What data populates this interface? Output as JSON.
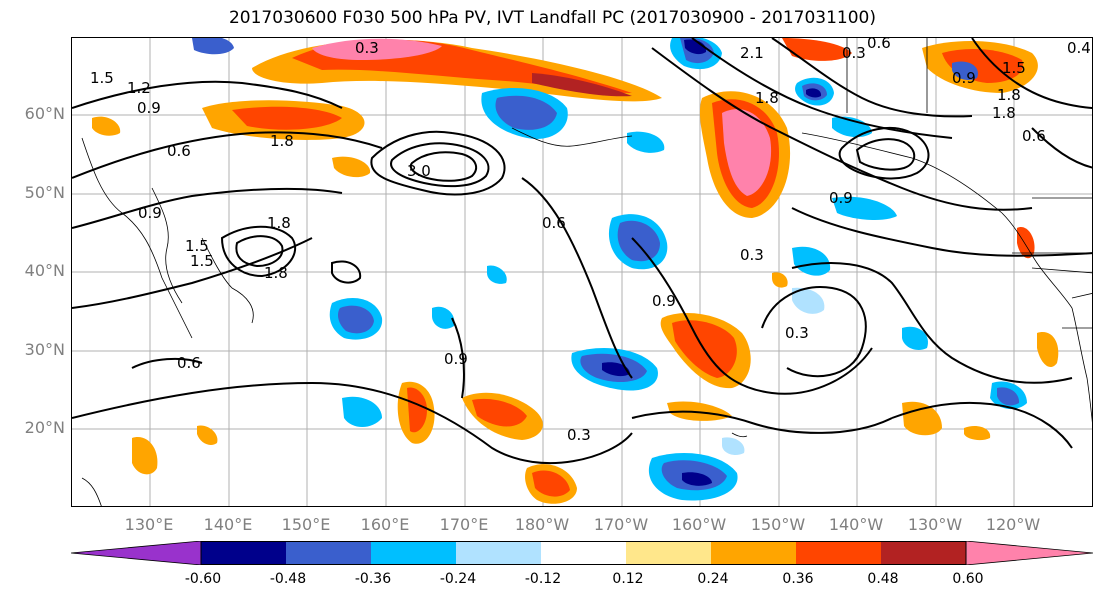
{
  "title": "2017030600 F030 500 hPa PV, IVT Landfall PC (2017030900 - 2017031100)",
  "lat_labels": [
    "60°N",
    "50°N",
    "40°N",
    "30°N",
    "20°N"
  ],
  "lon_labels": [
    "130°E",
    "140°E",
    "150°E",
    "160°E",
    "170°E",
    "180°W",
    "170°W",
    "160°W",
    "150°W",
    "140°W",
    "130°W",
    "120°W"
  ],
  "colorbar": {
    "colors": [
      "#9932cc",
      "#00008b",
      "#3a5fcd",
      "#00bfff",
      "#b0e2ff",
      "#ffffff",
      "#ffe78b",
      "#ffa500",
      "#ff4500",
      "#b22222",
      "#ff82ab"
    ],
    "tick_labels": [
      "-0.60",
      "-0.48",
      "-0.36",
      "-0.24",
      "-0.12",
      "0.12",
      "0.24",
      "0.36",
      "0.48",
      "0.60"
    ]
  },
  "contour_labels": [
    "0.3",
    "2.1",
    "1.5",
    "1.2",
    "0.9",
    "1.8",
    "0.6",
    "3.0",
    "1.5",
    "1.8",
    "0.9",
    "1.5",
    "1.8",
    "0.6",
    "0.9",
    "0.3",
    "0.6",
    "0.3",
    "0.9",
    "0.3",
    "0.3",
    "0.6",
    "0.9",
    "1.8",
    "0.6",
    "0.9",
    "1.5",
    "1.8",
    "0.4",
    "1.8"
  ]
}
